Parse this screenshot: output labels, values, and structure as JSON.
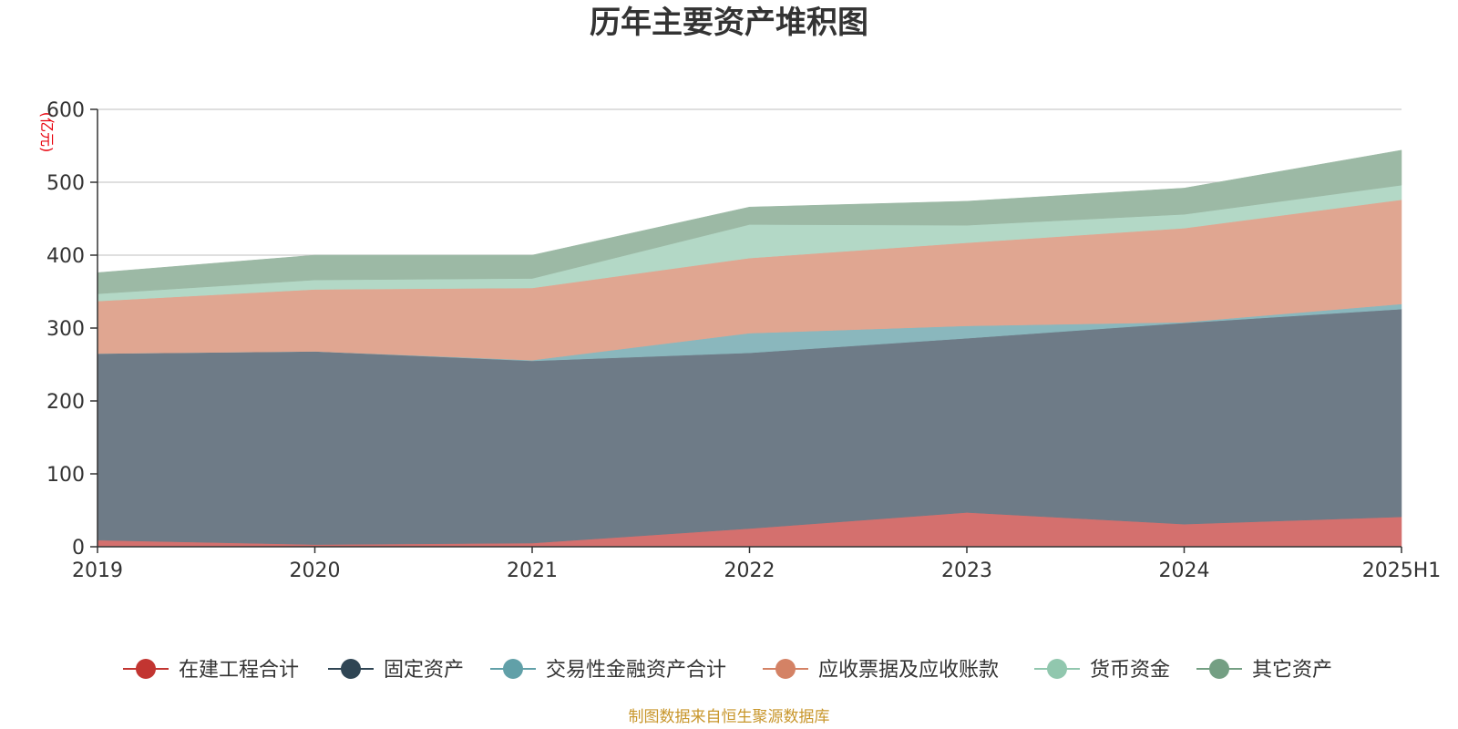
{
  "chart_data": {
    "type": "area",
    "stacked": true,
    "title": "历年主要资产堆积图",
    "y_unit": "(亿元)",
    "categories": [
      "2019",
      "2020",
      "2021",
      "2022",
      "2023",
      "2024",
      "2025H1"
    ],
    "ylim": [
      0,
      600
    ],
    "yticks": [
      "0",
      "100",
      "200",
      "300",
      "400",
      "500",
      "600"
    ],
    "grid": true,
    "legend_position": "bottom",
    "series": [
      {
        "name": "在建工程合计",
        "color": "#c23531",
        "fill": "#d4706e",
        "values": [
          9,
          3,
          5,
          25,
          47,
          31,
          41
        ]
      },
      {
        "name": "固定资产",
        "color": "#2f4554",
        "fill": "#6e7b87",
        "values": [
          256,
          265,
          250,
          241,
          239,
          276,
          285
        ]
      },
      {
        "name": "交易性金融资产合计",
        "color": "#61a0a8",
        "fill": "#8ab7bd",
        "values": [
          0,
          0,
          1,
          27,
          17,
          1,
          7
        ]
      },
      {
        "name": "应收票据及应收账款",
        "color": "#d48265",
        "fill": "#e0a691",
        "values": [
          72,
          85,
          99,
          103,
          114,
          129,
          143
        ]
      },
      {
        "name": "货币资金",
        "color": "#91c7ae",
        "fill": "#b3d8c6",
        "values": [
          10,
          13,
          13,
          46,
          24,
          19,
          20
        ]
      },
      {
        "name": "其它资产",
        "color": "#749f83",
        "fill": "#9cb9a5",
        "values": [
          29,
          34,
          32,
          24,
          33,
          36,
          48
        ]
      }
    ]
  },
  "footer": {
    "source": "制图数据来自恒生聚源数据库"
  }
}
